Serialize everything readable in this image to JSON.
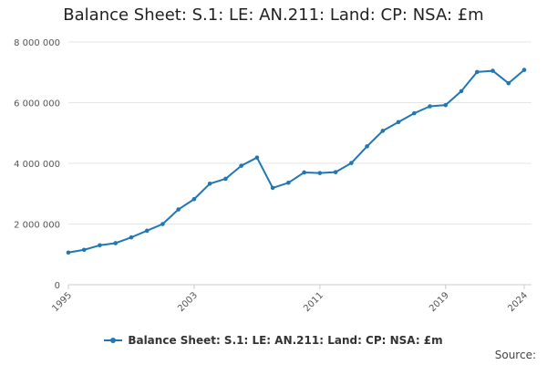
{
  "chart_data": {
    "type": "line",
    "title": "Balance Sheet: S.1: LE: AN.211: Land: CP: NSA: £m",
    "xlabel": "",
    "ylabel": "",
    "ylim": [
      0,
      8000000
    ],
    "yticks": [
      0,
      2000000,
      4000000,
      6000000,
      8000000
    ],
    "ytick_labels": [
      "0",
      "2 000 000",
      "4 000 000",
      "6 000 000",
      "8 000 000"
    ],
    "xlim": [
      1995,
      2024
    ],
    "xticks": [
      1995,
      2003,
      2011,
      2019,
      2024
    ],
    "xtick_labels": [
      "1995",
      "2003",
      "2011",
      "2019",
      "2024"
    ],
    "grid": true,
    "legend_position": "bottom",
    "series": [
      {
        "name": "Balance Sheet: S.1: LE: AN.211: Land: CP: NSA: £m",
        "color": "#1f77b4",
        "x": [
          1995,
          1996,
          1997,
          1998,
          1999,
          2000,
          2001,
          2002,
          2003,
          2004,
          2005,
          2006,
          2007,
          2008,
          2009,
          2010,
          2011,
          2012,
          2013,
          2014,
          2015,
          2016,
          2017,
          2018,
          2019,
          2020,
          2021,
          2022,
          2023,
          2024
        ],
        "values": [
          1060000,
          1150000,
          1300000,
          1370000,
          1560000,
          1780000,
          2000000,
          2480000,
          2820000,
          3330000,
          3490000,
          3920000,
          4190000,
          3190000,
          3360000,
          3700000,
          3680000,
          3710000,
          4010000,
          4560000,
          5070000,
          5360000,
          5650000,
          5880000,
          5920000,
          6380000,
          7010000,
          7050000,
          6640000,
          7080000
        ]
      }
    ]
  },
  "source_label": "Source:"
}
